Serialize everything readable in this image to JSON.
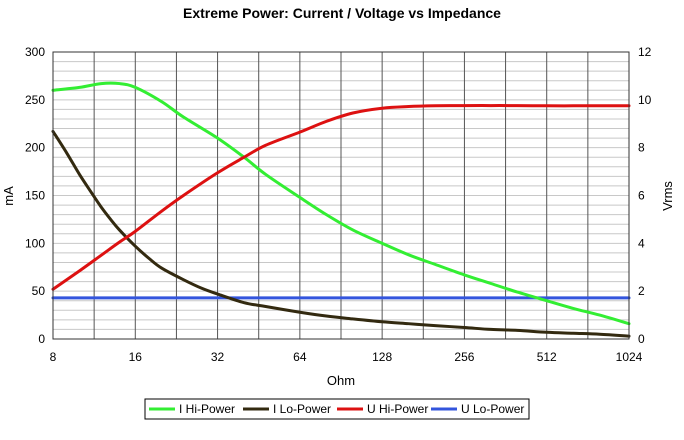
{
  "chart_data": {
    "type": "line",
    "title": "Extreme Power: Current / Voltage vs Impedance",
    "xlabel": "Ohm",
    "ylabel_left": "mA",
    "ylabel_right": "Vrms",
    "x_scale": "log2",
    "xlim": [
      8,
      1024
    ],
    "x_ticks": [
      8,
      16,
      32,
      64,
      128,
      256,
      512,
      1024
    ],
    "x_tick_labels": [
      "8",
      "16",
      "32",
      "64",
      "128",
      "256",
      "512",
      "1024"
    ],
    "ylim_left": [
      0,
      300
    ],
    "y_ticks_left": [
      0,
      50,
      100,
      150,
      200,
      250,
      300
    ],
    "ylim_right": [
      0,
      12
    ],
    "y_ticks_right": [
      0,
      2,
      4,
      6,
      8,
      10,
      12
    ],
    "grid": true,
    "legend_position": "bottom",
    "series": [
      {
        "name": "I Hi-Power",
        "axis": "left",
        "color": "#33ee33",
        "x": [
          8,
          10,
          12,
          14,
          16,
          20,
          24,
          32,
          40,
          48,
          64,
          80,
          100,
          128,
          160,
          200,
          256,
          320,
          400,
          512,
          640,
          800,
          1024
        ],
        "y": [
          260,
          263,
          267,
          267,
          263,
          248,
          232,
          210,
          190,
          172,
          148,
          130,
          114,
          100,
          88,
          78,
          67,
          58,
          49,
          40,
          32,
          25,
          16
        ]
      },
      {
        "name": "I Lo-Power",
        "axis": "left",
        "color": "#332a10",
        "x": [
          8,
          9,
          10,
          11,
          12,
          13,
          14,
          16,
          18,
          20,
          24,
          28,
          32,
          40,
          48,
          64,
          80,
          100,
          128,
          160,
          200,
          256,
          320,
          400,
          512,
          640,
          800,
          1024
        ],
        "y": [
          217,
          194,
          172,
          154,
          138,
          125,
          114,
          97,
          84,
          74,
          62,
          53,
          47,
          38,
          34,
          28,
          24,
          21,
          18,
          16,
          14,
          12,
          10,
          9,
          7,
          6,
          5,
          3
        ]
      },
      {
        "name": "U Hi-Power",
        "axis": "right",
        "color": "#dd1111",
        "x": [
          8,
          10,
          12,
          14,
          16,
          20,
          24,
          32,
          40,
          48,
          64,
          80,
          100,
          128,
          160,
          200,
          256,
          320,
          400,
          512,
          640,
          800,
          1024
        ],
        "y": [
          2.08,
          2.85,
          3.5,
          4.05,
          4.5,
          5.35,
          6.0,
          6.95,
          7.6,
          8.1,
          8.65,
          9.1,
          9.45,
          9.65,
          9.72,
          9.75,
          9.76,
          9.76,
          9.76,
          9.75,
          9.75,
          9.75,
          9.75
        ]
      },
      {
        "name": "U Lo-Power",
        "axis": "right",
        "color": "#3355dd",
        "x": [
          8,
          1024
        ],
        "y": [
          1.72,
          1.72
        ]
      }
    ]
  }
}
